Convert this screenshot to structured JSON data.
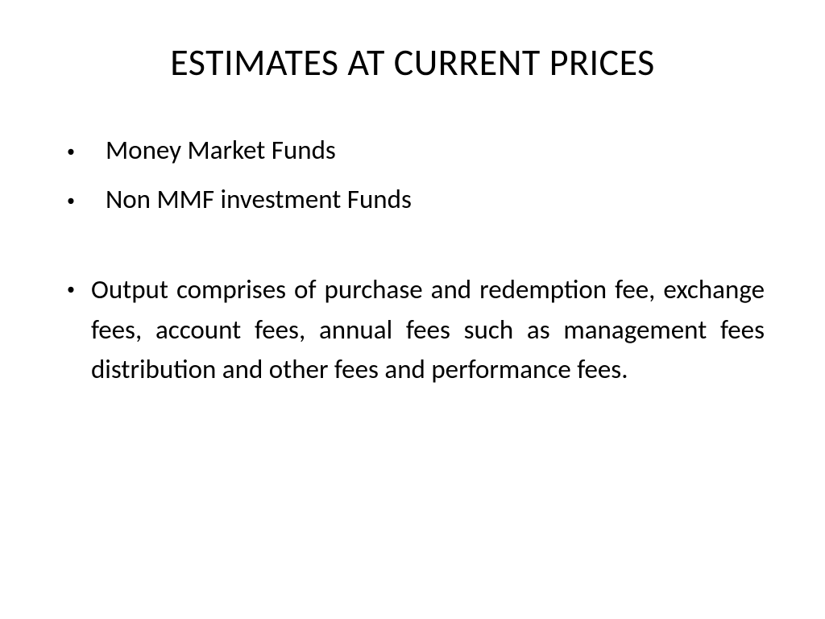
{
  "slide": {
    "title": "ESTIMATES AT CURRENT PRICES",
    "bullets": {
      "item1": "Money Market Funds",
      "item2": "Non MMF investment Funds",
      "item3": "Output comprises of purchase and redemption fee, exchange fees, account fees, annual fees such as management fees distribution and other fees and performance fees."
    }
  },
  "style": {
    "background_color": "#ffffff",
    "text_color": "#000000",
    "title_fontsize": 46,
    "body_fontsize": 33,
    "font_family": "Calibri"
  }
}
